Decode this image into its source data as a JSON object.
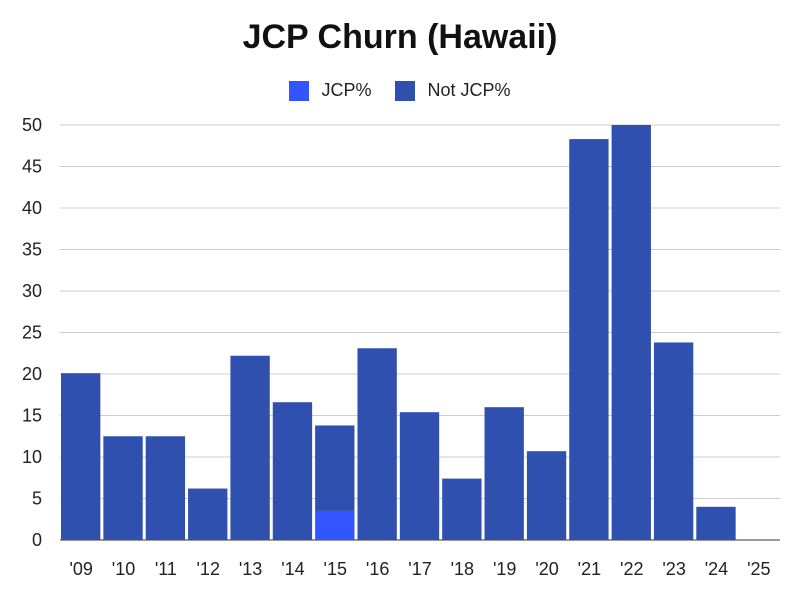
{
  "chart_data": {
    "type": "bar",
    "stacked": true,
    "title": "JCP Churn (Hawaii)",
    "xlabel": "",
    "ylabel": "",
    "ylim": [
      0,
      50
    ],
    "yticks": [
      0,
      5,
      10,
      15,
      20,
      25,
      30,
      35,
      40,
      45,
      50
    ],
    "grid": true,
    "legend_position": "top-center",
    "categories": [
      "'09",
      "'10",
      "'11",
      "'12",
      "'13",
      "'14",
      "'15",
      "'16",
      "'17",
      "'18",
      "'19",
      "'20",
      "'21",
      "'22",
      "'23",
      "'24",
      "'25"
    ],
    "series": [
      {
        "name": "JCP%",
        "color": "#3355ff",
        "values": [
          0,
          0,
          0,
          0,
          0,
          0,
          3.5,
          0,
          0,
          0,
          0,
          0,
          0,
          0,
          0,
          0,
          0
        ]
      },
      {
        "name": "Not JCP%",
        "color": "#3050b0",
        "values": [
          20.1,
          12.5,
          12.5,
          6.2,
          22.2,
          16.6,
          10.3,
          23.1,
          15.4,
          7.4,
          16.0,
          10.7,
          48.3,
          50.0,
          23.8,
          4.0,
          0
        ]
      }
    ]
  }
}
